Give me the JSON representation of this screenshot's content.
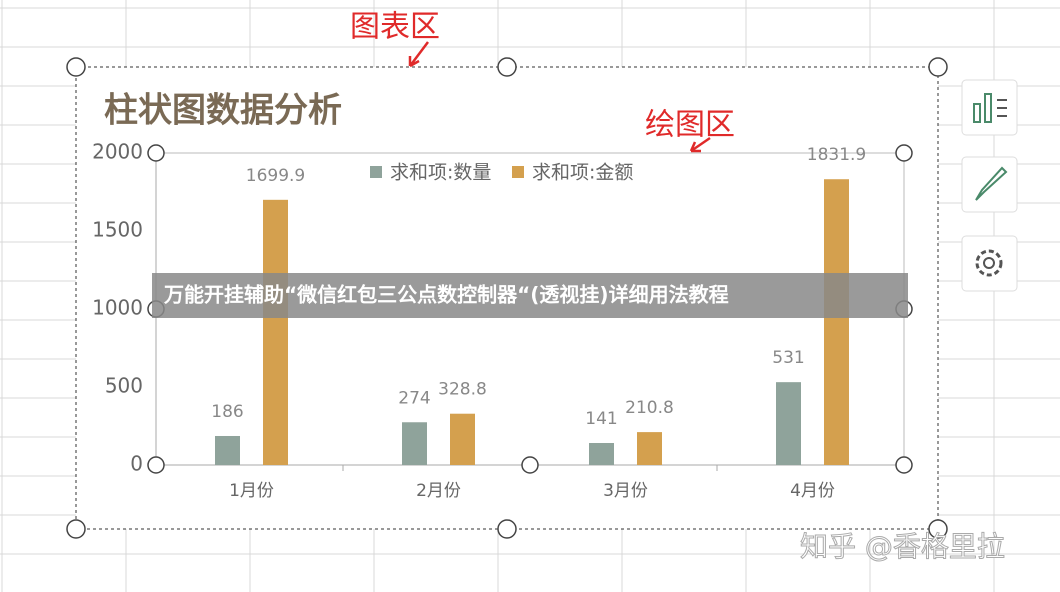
{
  "chart_data": {
    "type": "bar",
    "title": "柱状图数据分析",
    "categories": [
      "1月份",
      "2月份",
      "3月份",
      "4月份"
    ],
    "series": [
      {
        "name": "求和项:数量",
        "color": "#8fa39b",
        "values": [
          186,
          274,
          141,
          531
        ]
      },
      {
        "name": "求和项:金额",
        "color": "#d4a04e",
        "values": [
          1699.9,
          328.8,
          210.8,
          1831.9
        ]
      }
    ],
    "ylim": [
      0,
      2000
    ],
    "yticks": [
      0,
      500,
      1000,
      1500,
      2000
    ],
    "grid": false,
    "legend": "top"
  },
  "annotations": {
    "chart_area": "图表区",
    "plot_area": "绘图区"
  },
  "banner": "万能开挂辅助“微信红包三公点数控制器“(透视挂)详细用法教程",
  "watermark": "知乎 @香格里拉"
}
